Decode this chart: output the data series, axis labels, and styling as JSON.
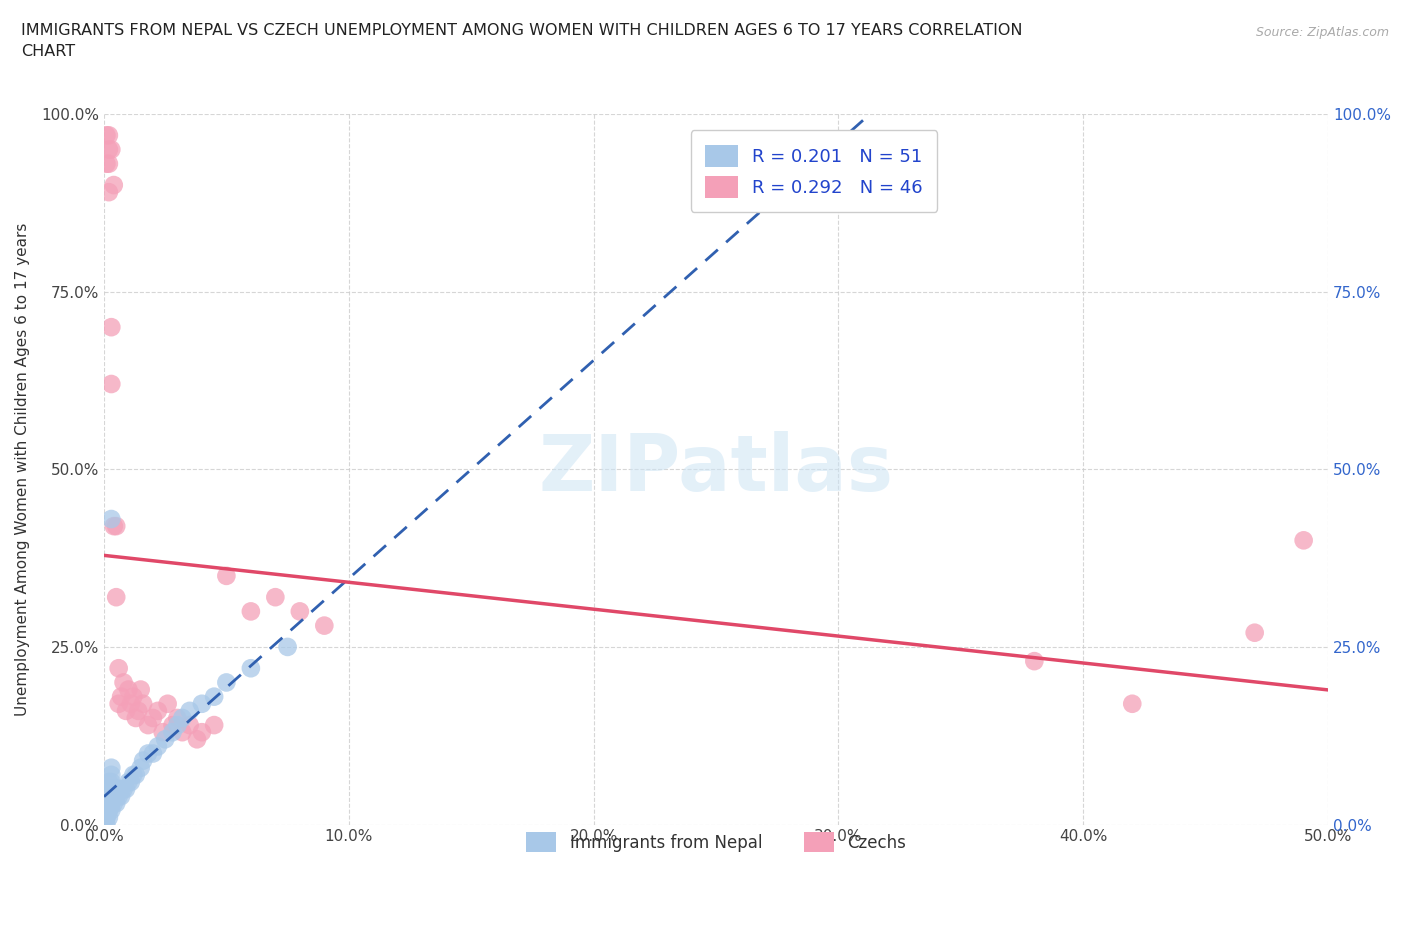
{
  "title": "IMMIGRANTS FROM NEPAL VS CZECH UNEMPLOYMENT AMONG WOMEN WITH CHILDREN AGES 6 TO 17 YEARS CORRELATION\nCHART",
  "source": "Source: ZipAtlas.com",
  "ylabel": "Unemployment Among Women with Children Ages 6 to 17 years",
  "xlim": [
    0.0,
    0.5
  ],
  "ylim": [
    0.0,
    1.0
  ],
  "xticks": [
    0.0,
    0.1,
    0.2,
    0.3,
    0.4,
    0.5
  ],
  "xticklabels": [
    "0.0%",
    "10.0%",
    "20.0%",
    "30.0%",
    "40.0%",
    "50.0%"
  ],
  "yticks": [
    0.0,
    0.25,
    0.5,
    0.75,
    1.0
  ],
  "yticklabels": [
    "0.0%",
    "25.0%",
    "50.0%",
    "75.0%",
    "100.0%"
  ],
  "nepal_color": "#a8c8e8",
  "czech_color": "#f4a0b8",
  "nepal_line_color": "#3060b0",
  "czech_line_color": "#e04868",
  "nepal_R": 0.201,
  "nepal_N": 51,
  "czech_R": 0.292,
  "czech_N": 46,
  "legend_labels": [
    "Immigrants from Nepal",
    "Czechs"
  ],
  "nepal_scatter_x": [
    0.001,
    0.001,
    0.001,
    0.001,
    0.001,
    0.002,
    0.002,
    0.002,
    0.002,
    0.002,
    0.002,
    0.002,
    0.003,
    0.003,
    0.003,
    0.003,
    0.003,
    0.003,
    0.003,
    0.004,
    0.004,
    0.004,
    0.005,
    0.005,
    0.005,
    0.006,
    0.006,
    0.007,
    0.007,
    0.008,
    0.009,
    0.01,
    0.011,
    0.012,
    0.013,
    0.015,
    0.016,
    0.018,
    0.02,
    0.022,
    0.025,
    0.028,
    0.03,
    0.032,
    0.035,
    0.04,
    0.045,
    0.05,
    0.06,
    0.075,
    0.003
  ],
  "nepal_scatter_y": [
    0.01,
    0.02,
    0.03,
    0.01,
    0.0,
    0.02,
    0.03,
    0.04,
    0.01,
    0.02,
    0.05,
    0.06,
    0.02,
    0.03,
    0.04,
    0.05,
    0.06,
    0.07,
    0.08,
    0.03,
    0.04,
    0.05,
    0.03,
    0.04,
    0.05,
    0.04,
    0.05,
    0.04,
    0.05,
    0.05,
    0.05,
    0.06,
    0.06,
    0.07,
    0.07,
    0.08,
    0.09,
    0.1,
    0.1,
    0.11,
    0.12,
    0.13,
    0.14,
    0.15,
    0.16,
    0.17,
    0.18,
    0.2,
    0.22,
    0.25,
    0.43
  ],
  "czech_scatter_x": [
    0.001,
    0.001,
    0.002,
    0.002,
    0.002,
    0.002,
    0.003,
    0.003,
    0.003,
    0.004,
    0.004,
    0.005,
    0.005,
    0.006,
    0.006,
    0.007,
    0.008,
    0.009,
    0.01,
    0.011,
    0.012,
    0.013,
    0.014,
    0.015,
    0.016,
    0.018,
    0.02,
    0.022,
    0.024,
    0.026,
    0.028,
    0.03,
    0.032,
    0.035,
    0.038,
    0.04,
    0.045,
    0.05,
    0.06,
    0.07,
    0.08,
    0.09,
    0.38,
    0.42,
    0.47,
    0.49
  ],
  "czech_scatter_y": [
    0.97,
    0.93,
    0.97,
    0.93,
    0.89,
    0.95,
    0.95,
    0.7,
    0.62,
    0.9,
    0.42,
    0.32,
    0.42,
    0.17,
    0.22,
    0.18,
    0.2,
    0.16,
    0.19,
    0.17,
    0.18,
    0.15,
    0.16,
    0.19,
    0.17,
    0.14,
    0.15,
    0.16,
    0.13,
    0.17,
    0.14,
    0.15,
    0.13,
    0.14,
    0.12,
    0.13,
    0.14,
    0.35,
    0.3,
    0.32,
    0.3,
    0.28,
    0.23,
    0.17,
    0.27,
    0.4
  ]
}
